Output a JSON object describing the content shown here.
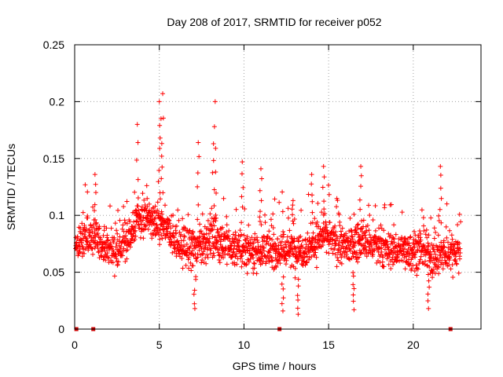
{
  "chart_data": {
    "type": "scatter",
    "title": "Day 208 of 2017, SRMTID for receiver p052",
    "xlabel": "GPS time / hours",
    "ylabel": "SRMTID / TECUs",
    "xlim": [
      0,
      24
    ],
    "ylim": [
      0,
      0.25
    ],
    "x_ticks": [
      0,
      5,
      10,
      15,
      20
    ],
    "x_tick_labels": [
      "0",
      "5",
      "10",
      "15",
      "20"
    ],
    "y_ticks": [
      0,
      0.05,
      0.1,
      0.15,
      0.2,
      0.25
    ],
    "y_tick_labels": [
      "0",
      "0.05",
      "0.1",
      "0.15",
      "0.2",
      "0.25"
    ],
    "grid": true,
    "marker": "+",
    "series": [
      {
        "name": "SRMTID",
        "color": "#ff0000",
        "time_range_hours": [
          0,
          22.8
        ],
        "typical_range": [
          0.02,
          0.1
        ],
        "notable_points": [
          {
            "x": 5.2,
            "y": 0.207
          },
          {
            "x": 5.0,
            "y": 0.2
          },
          {
            "x": 8.3,
            "y": 0.2
          },
          {
            "x": 5.1,
            "y": 0.185
          },
          {
            "x": 3.7,
            "y": 0.18
          },
          {
            "x": 7.3,
            "y": 0.164
          },
          {
            "x": 8.2,
            "y": 0.163
          },
          {
            "x": 16.9,
            "y": 0.143
          },
          {
            "x": 21.6,
            "y": 0.143
          },
          {
            "x": 9.9,
            "y": 0.147
          },
          {
            "x": 14.7,
            "y": 0.143
          },
          {
            "x": 11.0,
            "y": 0.141
          },
          {
            "x": 1.2,
            "y": 0.136
          },
          {
            "x": 14.0,
            "y": 0.136
          },
          {
            "x": 12.9,
            "y": 0.113
          },
          {
            "x": 13.2,
            "y": 0.013
          },
          {
            "x": 12.3,
            "y": 0.016
          },
          {
            "x": 7.1,
            "y": 0.018
          },
          {
            "x": 16.5,
            "y": 0.017
          },
          {
            "x": 20.9,
            "y": 0.018
          }
        ]
      },
      {
        "name": "markers at zero",
        "color": "#cc0000",
        "x": [
          0.1,
          1.1,
          12.1,
          22.2
        ],
        "y": [
          0,
          0,
          0,
          0
        ]
      }
    ]
  }
}
